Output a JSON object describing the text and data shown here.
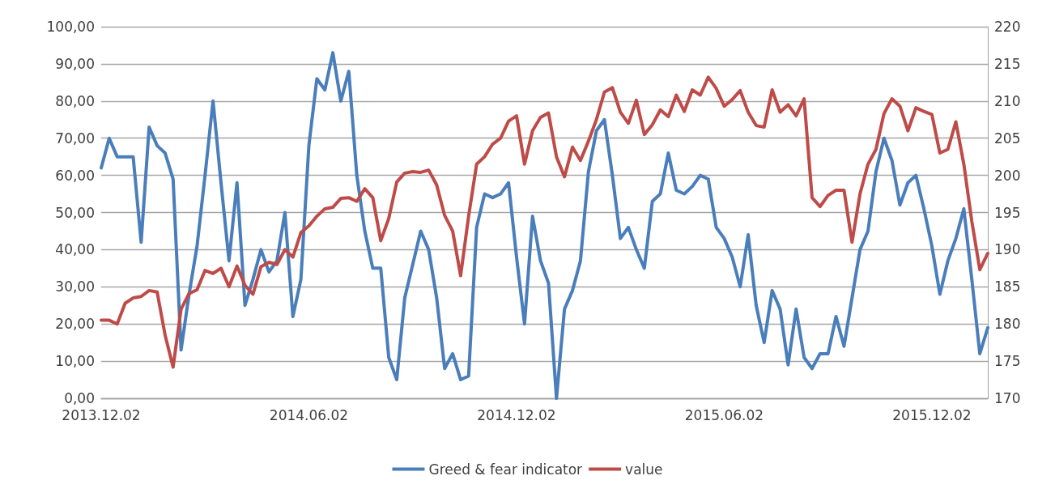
{
  "chart_data": {
    "type": "line",
    "categories": [
      "2013.12.02",
      null,
      null,
      null,
      null,
      null,
      null,
      null,
      null,
      null,
      null,
      null,
      null,
      null,
      null,
      null,
      null,
      null,
      null,
      null,
      null,
      null,
      null,
      null,
      null,
      null,
      "2014.06.02",
      null,
      null,
      null,
      null,
      null,
      null,
      null,
      null,
      null,
      null,
      null,
      null,
      null,
      null,
      null,
      null,
      null,
      null,
      null,
      null,
      null,
      null,
      null,
      null,
      null,
      "2014.12.02",
      null,
      null,
      null,
      null,
      null,
      null,
      null,
      null,
      null,
      null,
      null,
      null,
      null,
      null,
      null,
      null,
      null,
      null,
      null,
      null,
      null,
      null,
      null,
      null,
      null,
      "2015.06.02",
      null,
      null,
      null,
      null,
      null,
      null,
      null,
      null,
      null,
      null,
      null,
      null,
      null,
      null,
      null,
      null,
      null,
      null,
      null,
      null,
      null,
      null,
      null,
      null,
      null,
      "2015.12.02",
      null,
      null,
      null,
      null,
      null,
      null,
      null
    ],
    "series": [
      {
        "name": "Greed & fear indicator",
        "color": "#4a7ebb",
        "values": [
          62,
          70,
          65,
          65,
          65,
          42,
          73,
          68,
          66,
          59,
          13,
          28,
          41,
          60,
          80,
          58,
          37,
          58,
          25,
          32,
          40,
          34,
          37,
          50,
          22,
          32,
          68,
          86,
          83,
          93,
          80,
          88,
          60,
          45,
          35,
          35,
          11,
          5,
          27,
          36,
          45,
          40,
          27,
          8,
          12,
          5,
          6,
          46,
          55,
          54,
          55,
          58,
          38,
          20,
          49,
          37,
          31,
          0,
          24,
          29,
          37,
          61,
          72,
          75,
          60,
          43,
          46,
          40,
          35,
          53,
          55,
          66,
          56,
          55,
          57,
          60,
          59,
          46,
          43,
          38,
          30,
          44,
          25,
          15,
          29,
          24,
          9,
          24,
          11,
          8,
          12,
          12,
          22,
          14,
          27,
          40,
          45,
          61,
          70,
          64,
          52,
          58,
          60,
          51,
          41,
          28,
          37,
          43,
          51,
          32,
          12,
          19
        ]
      },
      {
        "name": "value",
        "color": "#be4b48",
        "axis": "y2",
        "values": [
          180.5,
          180.5,
          180,
          182.8,
          183.5,
          183.7,
          184.5,
          184.3,
          178.5,
          174.2,
          182,
          184.1,
          184.6,
          187.2,
          186.8,
          187.5,
          185,
          187.8,
          185.2,
          184,
          187.7,
          188.3,
          188,
          190,
          189,
          192.3,
          193.2,
          194.5,
          195.5,
          195.7,
          196.9,
          197,
          196.5,
          198.2,
          197,
          191.2,
          194.2,
          199.1,
          200.3,
          200.5,
          200.4,
          200.7,
          198.7,
          194.6,
          192.5,
          186.5,
          194.5,
          201.5,
          202.5,
          204.2,
          205,
          207.3,
          208,
          201.5,
          206,
          207.8,
          208.4,
          202.5,
          199.8,
          203.8,
          202,
          204.6,
          207.5,
          211.2,
          211.8,
          208.5,
          207,
          210.1,
          205.5,
          206.8,
          208.8,
          207.9,
          210.8,
          208.6,
          211.5,
          210.8,
          213.2,
          211.7,
          209.3,
          210.2,
          211.4,
          208.5,
          206.7,
          206.5,
          211.5,
          208.5,
          209.5,
          208,
          210.3,
          197,
          195.8,
          197.3,
          198,
          198,
          191,
          197.5,
          201.5,
          203.5,
          208.3,
          210.3,
          209.3,
          206,
          209.1,
          208.6,
          208.2,
          203,
          203.5,
          207.2,
          201.5,
          193.8,
          187.3,
          189.5
        ]
      }
    ],
    "ylim": [
      0,
      100
    ],
    "yticks": [
      {
        "value": 0,
        "label": "0,00"
      },
      {
        "value": 10,
        "label": "10,00"
      },
      {
        "value": 20,
        "label": "20,00"
      },
      {
        "value": 30,
        "label": "30,00"
      },
      {
        "value": 40,
        "label": "40,00"
      },
      {
        "value": 50,
        "label": "50,00"
      },
      {
        "value": 60,
        "label": "60,00"
      },
      {
        "value": 70,
        "label": "70,00"
      },
      {
        "value": 80,
        "label": "80,00"
      },
      {
        "value": 90,
        "label": "90,00"
      },
      {
        "value": 100,
        "label": "100,00"
      }
    ],
    "y2lim": [
      170,
      220
    ],
    "y2ticks": [
      170,
      175,
      180,
      185,
      190,
      195,
      200,
      205,
      210,
      215,
      220
    ],
    "grid": "y",
    "legend": "bottom",
    "marker": "none",
    "line_style": "solid"
  }
}
